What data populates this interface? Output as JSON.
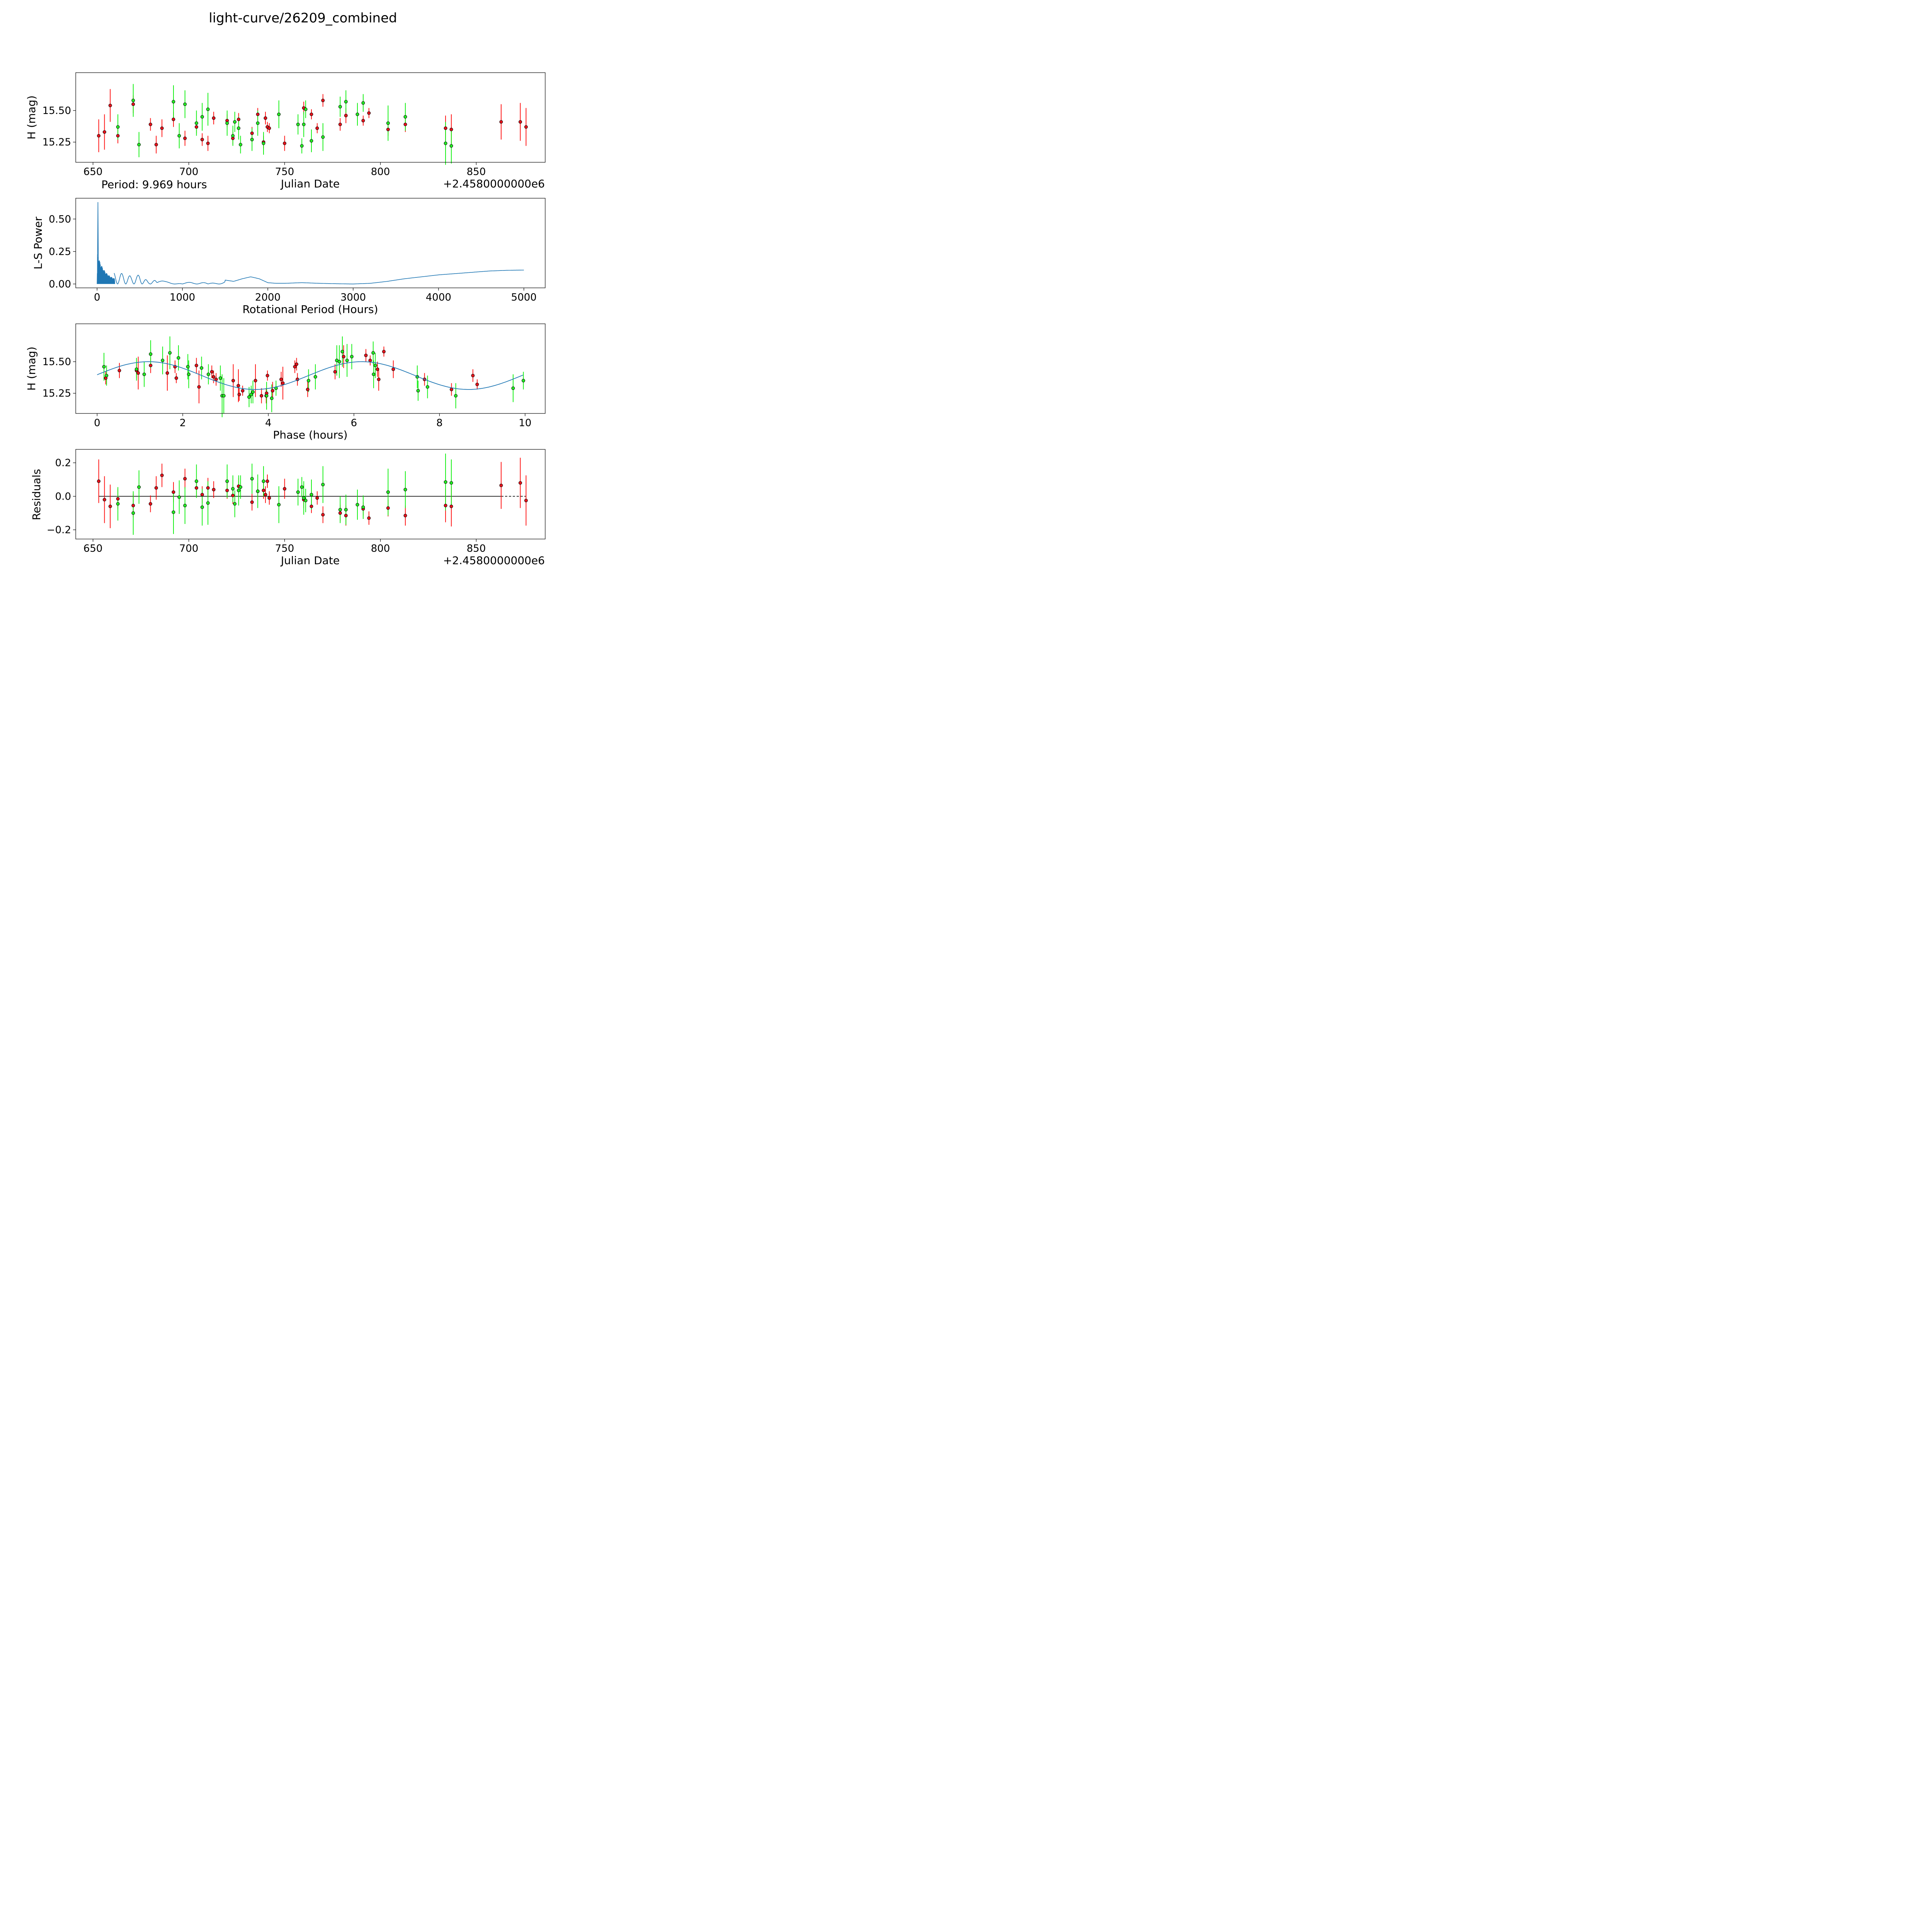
{
  "figure_title": "light-curve/26209_combined",
  "colors": {
    "red": "#ff0000",
    "red_marker": "#e8111a",
    "green": "#00ee00",
    "green_marker": "#22ee22",
    "curve": "#1f77b4",
    "black": "#000000"
  },
  "chart_data": [
    {
      "id": "lightcurve",
      "type": "scatter",
      "xlabel": "Julian Date",
      "ylabel": "H (mag)",
      "offset_text": "+2.4580000000e6",
      "annotation": "Period: 9.969 hours",
      "xlim": [
        641,
        886
      ],
      "ylim": [
        15.09,
        15.8
      ],
      "xticks": [
        650,
        700,
        750,
        800,
        850
      ],
      "yticks": [
        15.25,
        15.5
      ],
      "ytick_labels": [
        "15.25",
        "15.50"
      ],
      "series": [
        {
          "name": "red",
          "x": [
            653.0,
            656.0,
            659.0,
            663.0,
            671.0,
            680.0,
            683.0,
            686.0,
            692.0,
            698.0,
            704.0,
            707.0,
            710.0,
            713.0,
            720.0,
            723.0,
            726.0,
            733.0,
            736.0,
            739.0,
            740.0,
            741.0,
            742.0,
            750.0,
            760.0,
            764.0,
            767.0,
            770.0,
            779.0,
            782.0,
            791.0,
            794.0,
            804.0,
            813.0,
            834.0,
            837.0,
            863.0,
            873.0,
            876.0
          ],
          "y": [
            15.3,
            15.33,
            15.54,
            15.3,
            15.55,
            15.39,
            15.23,
            15.36,
            15.43,
            15.28,
            15.37,
            15.27,
            15.24,
            15.44,
            15.42,
            15.28,
            15.43,
            15.32,
            15.47,
            15.25,
            15.44,
            15.37,
            15.36,
            15.24,
            15.52,
            15.47,
            15.36,
            15.58,
            15.39,
            15.46,
            15.42,
            15.48,
            15.35,
            15.39,
            15.36,
            15.35,
            15.41,
            15.41,
            15.37
          ],
          "err": [
            0.13,
            0.14,
            0.13,
            0.06,
            0.07,
            0.05,
            0.07,
            0.07,
            0.06,
            0.06,
            0.05,
            0.05,
            0.06,
            0.05,
            0.05,
            0.05,
            0.05,
            0.05,
            0.05,
            0.05,
            0.05,
            0.04,
            0.04,
            0.06,
            0.05,
            0.04,
            0.04,
            0.05,
            0.05,
            0.06,
            0.04,
            0.04,
            0.05,
            0.06,
            0.1,
            0.12,
            0.14,
            0.15,
            0.15
          ]
        },
        {
          "name": "green",
          "x": [
            663.0,
            671.0,
            674.0,
            692.0,
            695.0,
            698.0,
            704.0,
            707.0,
            710.0,
            720.0,
            723.0,
            724.0,
            726.0,
            727.0,
            733.0,
            736.0,
            739.0,
            747.0,
            757.0,
            759.0,
            760.0,
            761.0,
            764.0,
            770.0,
            779.0,
            782.0,
            788.0,
            791.0,
            804.0,
            813.0,
            834.0,
            837.0
          ],
          "y": [
            15.37,
            15.58,
            15.23,
            15.57,
            15.3,
            15.55,
            15.4,
            15.45,
            15.51,
            15.4,
            15.3,
            15.41,
            15.36,
            15.23,
            15.27,
            15.4,
            15.24,
            15.47,
            15.39,
            15.22,
            15.39,
            15.51,
            15.26,
            15.29,
            15.53,
            15.57,
            15.47,
            15.56,
            15.4,
            15.45,
            15.24,
            15.22
          ],
          "err": [
            0.1,
            0.13,
            0.1,
            0.13,
            0.1,
            0.11,
            0.1,
            0.11,
            0.13,
            0.1,
            0.08,
            0.08,
            0.09,
            0.07,
            0.09,
            0.1,
            0.09,
            0.11,
            0.08,
            0.06,
            0.1,
            0.07,
            0.09,
            0.11,
            0.08,
            0.09,
            0.09,
            0.07,
            0.14,
            0.11,
            0.17,
            0.14
          ]
        }
      ]
    },
    {
      "id": "periodogram",
      "type": "line",
      "xlabel": "Rotational Period (Hours)",
      "ylabel": "L-S Power",
      "xlim": [
        -250,
        5250
      ],
      "ylim": [
        -0.03,
        0.66
      ],
      "xticks": [
        0,
        1000,
        2000,
        3000,
        4000,
        5000
      ],
      "yticks": [
        0.0,
        0.25,
        0.5
      ],
      "ytick_labels": [
        "0.00",
        "0.25",
        "0.50"
      ],
      "peak_period": 9.969,
      "peak_power": 0.63,
      "x": [
        0,
        100,
        200,
        300,
        400,
        500,
        600,
        700,
        800,
        900,
        1000,
        1100,
        1200,
        1300,
        1400,
        1500,
        1600,
        1700,
        1800,
        1900,
        2000,
        2100,
        2200,
        2400,
        2600,
        2800,
        3000,
        3200,
        3400,
        3600,
        3800,
        4000,
        4200,
        4400,
        4600,
        4800,
        5000
      ],
      "y": [
        0.22,
        0.1,
        0.09,
        0.08,
        0.06,
        0.07,
        0.02,
        0.03,
        0.02,
        0.02,
        0.0,
        0.02,
        0.03,
        0.0,
        0.02,
        0.03,
        0.02,
        0.04,
        0.055,
        0.04,
        0.01,
        0.005,
        0.005,
        0.01,
        0.005,
        0.002,
        0.0,
        0.005,
        0.02,
        0.04,
        0.055,
        0.07,
        0.08,
        0.09,
        0.1,
        0.105,
        0.107
      ]
    },
    {
      "id": "phased",
      "type": "scatter",
      "xlabel": "Phase (hours)",
      "ylabel": "H (mag)",
      "xlim": [
        -0.5,
        10.47
      ],
      "ylim": [
        15.09,
        15.8
      ],
      "xticks": [
        0,
        2,
        4,
        6,
        8,
        10
      ],
      "yticks": [
        15.25,
        15.5
      ],
      "ytick_labels": [
        "15.25",
        "15.50"
      ],
      "model": {
        "mean": 15.39,
        "amplitude": 0.11,
        "period": 9.969,
        "peak_phase": 1.2
      },
      "series": [
        {
          "name": "red",
          "x": [
            0.2,
            0.52,
            0.92,
            0.96,
            1.25,
            1.64,
            1.82,
            1.85,
            2.32,
            2.38,
            2.68,
            2.72,
            2.78,
            3.18,
            3.3,
            3.32,
            3.4,
            3.7,
            3.84,
            3.95,
            3.96,
            3.98,
            4.1,
            4.3,
            4.34,
            4.62,
            4.66,
            4.68,
            4.92,
            5.56,
            5.76,
            6.28,
            6.38,
            6.55,
            6.58,
            6.7,
            6.92,
            7.65,
            8.28,
            8.78,
            8.88
          ],
          "y": [
            15.37,
            15.43,
            15.43,
            15.41,
            15.47,
            15.41,
            15.46,
            15.37,
            15.47,
            15.3,
            15.42,
            15.38,
            15.36,
            15.35,
            15.31,
            15.24,
            15.27,
            15.35,
            15.23,
            15.23,
            15.25,
            15.39,
            15.27,
            15.36,
            15.33,
            15.46,
            15.48,
            15.36,
            15.28,
            15.42,
            15.54,
            15.55,
            15.51,
            15.44,
            15.36,
            15.58,
            15.44,
            15.36,
            15.28,
            15.39,
            15.32
          ],
          "err": [
            0.05,
            0.06,
            0.06,
            0.13,
            0.06,
            0.14,
            0.05,
            0.04,
            0.06,
            0.13,
            0.05,
            0.05,
            0.05,
            0.13,
            0.13,
            0.05,
            0.04,
            0.13,
            0.06,
            0.06,
            0.04,
            0.04,
            0.07,
            0.06,
            0.13,
            0.05,
            0.05,
            0.05,
            0.06,
            0.06,
            0.09,
            0.05,
            0.04,
            0.06,
            0.09,
            0.04,
            0.07,
            0.05,
            0.05,
            0.05,
            0.04
          ]
        },
        {
          "name": "green",
          "x": [
            0.16,
            0.22,
            0.92,
            1.1,
            1.25,
            1.53,
            1.7,
            1.9,
            2.12,
            2.14,
            2.44,
            2.6,
            2.88,
            2.92,
            2.96,
            3.55,
            3.6,
            3.64,
            3.96,
            4.18,
            4.08,
            4.94,
            5.1,
            5.6,
            5.66,
            5.73,
            5.84,
            5.95,
            6.45,
            6.46,
            6.5,
            7.48,
            7.5,
            7.72,
            8.38,
            9.72,
            9.96
          ],
          "y": [
            15.46,
            15.39,
            15.44,
            15.4,
            15.56,
            15.51,
            15.57,
            15.53,
            15.46,
            15.4,
            15.45,
            15.4,
            15.37,
            15.23,
            15.23,
            15.22,
            15.24,
            15.26,
            15.23,
            15.29,
            15.21,
            15.35,
            15.38,
            15.51,
            15.5,
            15.58,
            15.51,
            15.54,
            15.57,
            15.4,
            15.47,
            15.38,
            15.27,
            15.3,
            15.23,
            15.29,
            15.35
          ],
          "err": [
            0.11,
            0.08,
            0.09,
            0.1,
            0.11,
            0.11,
            0.13,
            0.1,
            0.1,
            0.11,
            0.09,
            0.08,
            0.1,
            0.17,
            0.14,
            0.08,
            0.07,
            0.09,
            0.11,
            0.06,
            0.11,
            0.09,
            0.1,
            0.12,
            0.13,
            0.12,
            0.13,
            0.1,
            0.09,
            0.11,
            0.1,
            0.09,
            0.08,
            0.09,
            0.1,
            0.11,
            0.07
          ]
        }
      ]
    },
    {
      "id": "residuals",
      "type": "scatter",
      "xlabel": "Julian Date",
      "ylabel": "Residuals",
      "offset_text": "+2.4580000000e6",
      "xlim": [
        641,
        886
      ],
      "ylim": [
        -0.255,
        0.28
      ],
      "xticks": [
        650,
        700,
        750,
        800,
        850
      ],
      "yticks": [
        -0.2,
        0.0,
        0.2
      ],
      "ytick_labels": [
        "−0.2",
        "0.0",
        "0.2"
      ],
      "zero_line": {
        "y": 0.0,
        "solid_until": 863,
        "dashed_until": 876
      },
      "series": [
        {
          "name": "red",
          "x": [
            653.0,
            656.0,
            659.0,
            663.0,
            671.0,
            680.0,
            683.0,
            686.0,
            692.0,
            698.0,
            704.0,
            707.0,
            710.0,
            713.0,
            720.0,
            723.0,
            726.0,
            733.0,
            736.0,
            739.0,
            740.0,
            741.0,
            742.0,
            750.0,
            760.0,
            764.0,
            767.0,
            770.0,
            779.0,
            782.0,
            791.0,
            794.0,
            804.0,
            813.0,
            834.0,
            837.0,
            863.0,
            873.0,
            876.0
          ],
          "y": [
            0.09,
            -0.02,
            -0.06,
            -0.015,
            -0.055,
            -0.045,
            0.05,
            0.125,
            0.025,
            0.105,
            0.05,
            0.01,
            0.05,
            0.04,
            0.035,
            0.005,
            0.06,
            -0.035,
            0.03,
            0.035,
            0.01,
            0.09,
            -0.01,
            0.045,
            -0.02,
            -0.06,
            -0.01,
            -0.11,
            -0.1,
            -0.115,
            -0.075,
            -0.13,
            -0.07,
            -0.115,
            -0.055,
            -0.06,
            0.065,
            0.08,
            -0.025
          ],
          "err": [
            0.13,
            0.14,
            0.13,
            0.06,
            0.07,
            0.05,
            0.07,
            0.07,
            0.06,
            0.06,
            0.05,
            0.05,
            0.06,
            0.05,
            0.05,
            0.05,
            0.05,
            0.05,
            0.05,
            0.05,
            0.05,
            0.04,
            0.04,
            0.06,
            0.05,
            0.04,
            0.04,
            0.05,
            0.05,
            0.06,
            0.04,
            0.04,
            0.05,
            0.06,
            0.1,
            0.12,
            0.14,
            0.15,
            0.15
          ]
        },
        {
          "name": "green",
          "x": [
            663.0,
            671.0,
            674.0,
            692.0,
            695.0,
            698.0,
            704.0,
            707.0,
            710.0,
            720.0,
            723.0,
            724.0,
            726.0,
            727.0,
            733.0,
            736.0,
            739.0,
            747.0,
            757.0,
            759.0,
            760.0,
            761.0,
            764.0,
            770.0,
            779.0,
            782.0,
            788.0,
            791.0,
            804.0,
            813.0,
            834.0,
            837.0
          ],
          "y": [
            -0.045,
            -0.1,
            0.055,
            -0.095,
            -0.005,
            -0.055,
            0.09,
            -0.065,
            -0.04,
            0.09,
            0.045,
            -0.045,
            0.035,
            0.055,
            0.105,
            0.03,
            0.09,
            -0.05,
            0.025,
            0.055,
            -0.01,
            -0.025,
            0.01,
            0.07,
            -0.08,
            -0.08,
            -0.05,
            -0.065,
            0.025,
            0.04,
            0.085,
            0.08
          ],
          "err": [
            0.1,
            0.13,
            0.1,
            0.13,
            0.1,
            0.11,
            0.1,
            0.11,
            0.13,
            0.1,
            0.08,
            0.08,
            0.09,
            0.07,
            0.09,
            0.1,
            0.09,
            0.11,
            0.08,
            0.06,
            0.1,
            0.07,
            0.09,
            0.11,
            0.08,
            0.09,
            0.09,
            0.07,
            0.14,
            0.11,
            0.17,
            0.14
          ]
        }
      ]
    }
  ]
}
